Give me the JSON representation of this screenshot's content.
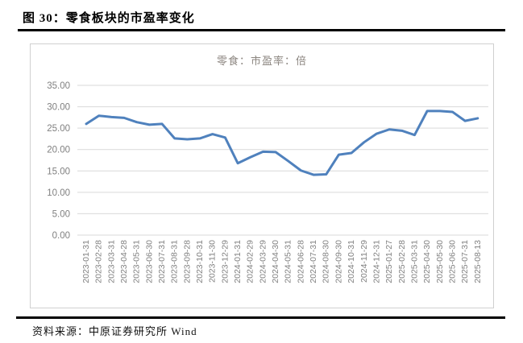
{
  "figure": {
    "title": "图 30：零食板块的市盈率变化",
    "source": "资料来源：中原证券研究所 Wind"
  },
  "chart_data": {
    "type": "line",
    "title": "",
    "legend": "零食：市盈率：倍",
    "legend_position": "top-center",
    "x": [
      "2023-01-31",
      "2023-02-28",
      "2023-03-31",
      "2023-04-28",
      "2023-05-31",
      "2023-06-30",
      "2023-07-31",
      "2023-08-31",
      "2023-09-28",
      "2023-10-31",
      "2023-11-30",
      "2023-12-29",
      "2024-01-31",
      "2024-02-29",
      "2024-03-29",
      "2024-04-30",
      "2024-05-31",
      "2024-06-28",
      "2024-07-31",
      "2024-08-30",
      "2024-09-30",
      "2024-10-31",
      "2024-11-29",
      "2024-12-31",
      "2025-01-27",
      "2025-02-28",
      "2025-03-31",
      "2025-04-30",
      "2025-05-30",
      "2025-06-30",
      "2025-07-31",
      "2025-08-13"
    ],
    "series": [
      {
        "name": "零食：市盈率：倍",
        "values": [
          26.0,
          27.9,
          27.6,
          27.4,
          26.4,
          25.8,
          26.0,
          22.6,
          22.4,
          22.6,
          23.6,
          22.8,
          16.8,
          18.2,
          19.5,
          19.4,
          17.3,
          15.1,
          14.1,
          14.2,
          18.8,
          19.2,
          21.7,
          23.7,
          24.7,
          24.4,
          23.4,
          29.0,
          29.0,
          28.8,
          26.7,
          27.3
        ]
      }
    ],
    "xlabel": "",
    "ylabel": "",
    "ylim": [
      0,
      35
    ],
    "ytick_step": 5,
    "ytick_labels": [
      "0.00",
      "5.00",
      "10.00",
      "15.00",
      "20.00",
      "25.00",
      "30.00",
      "35.00"
    ],
    "grid": "horizontal",
    "colors": {
      "line": "#4F81BD",
      "gridline": "#D9D9D9",
      "axis_text": "#808080",
      "legend_text": "#8C8680"
    }
  }
}
